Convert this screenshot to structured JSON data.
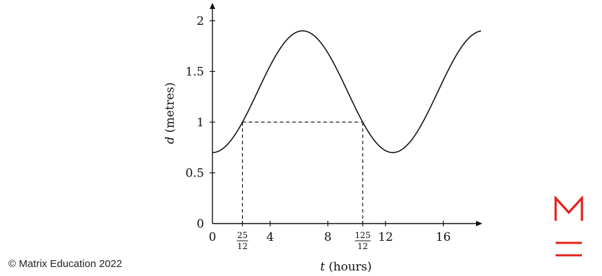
{
  "chart_data": {
    "type": "line",
    "title": "",
    "xlabel_var": "t",
    "xlabel_unit": "(hours)",
    "ylabel_var": "d",
    "ylabel_unit": "(metres)",
    "xlim": [
      0,
      18.5
    ],
    "ylim": [
      0,
      2.15
    ],
    "function": {
      "form": "d = A*cos(2*pi*(t - peak)/period) + mean",
      "A": 0.6,
      "mean": 1.3,
      "period": 12.5,
      "peak": 6.25
    },
    "x_ticks": [
      {
        "value": 0,
        "label": "0"
      },
      {
        "value": 4,
        "label": "4"
      },
      {
        "value": 8,
        "label": "8"
      },
      {
        "value": 12,
        "label": "12"
      },
      {
        "value": 16,
        "label": "16"
      }
    ],
    "x_fraction_ticks": [
      {
        "value": 2.0833,
        "num": "25",
        "den": "12"
      },
      {
        "value": 10.4167,
        "num": "125",
        "den": "12"
      }
    ],
    "y_ticks": [
      {
        "value": 0,
        "label": "0"
      },
      {
        "value": 0.5,
        "label": "0.5"
      },
      {
        "value": 1,
        "label": "1"
      },
      {
        "value": 1.5,
        "label": "1.5"
      },
      {
        "value": 2,
        "label": "2"
      }
    ],
    "dashed_level": 1,
    "dashed_x": [
      2.0833,
      10.4167
    ]
  },
  "footer": {
    "copyright": "© Matrix Education 2022"
  },
  "brand": {
    "logo_name": "matrix-logo",
    "color": "#e32119"
  }
}
